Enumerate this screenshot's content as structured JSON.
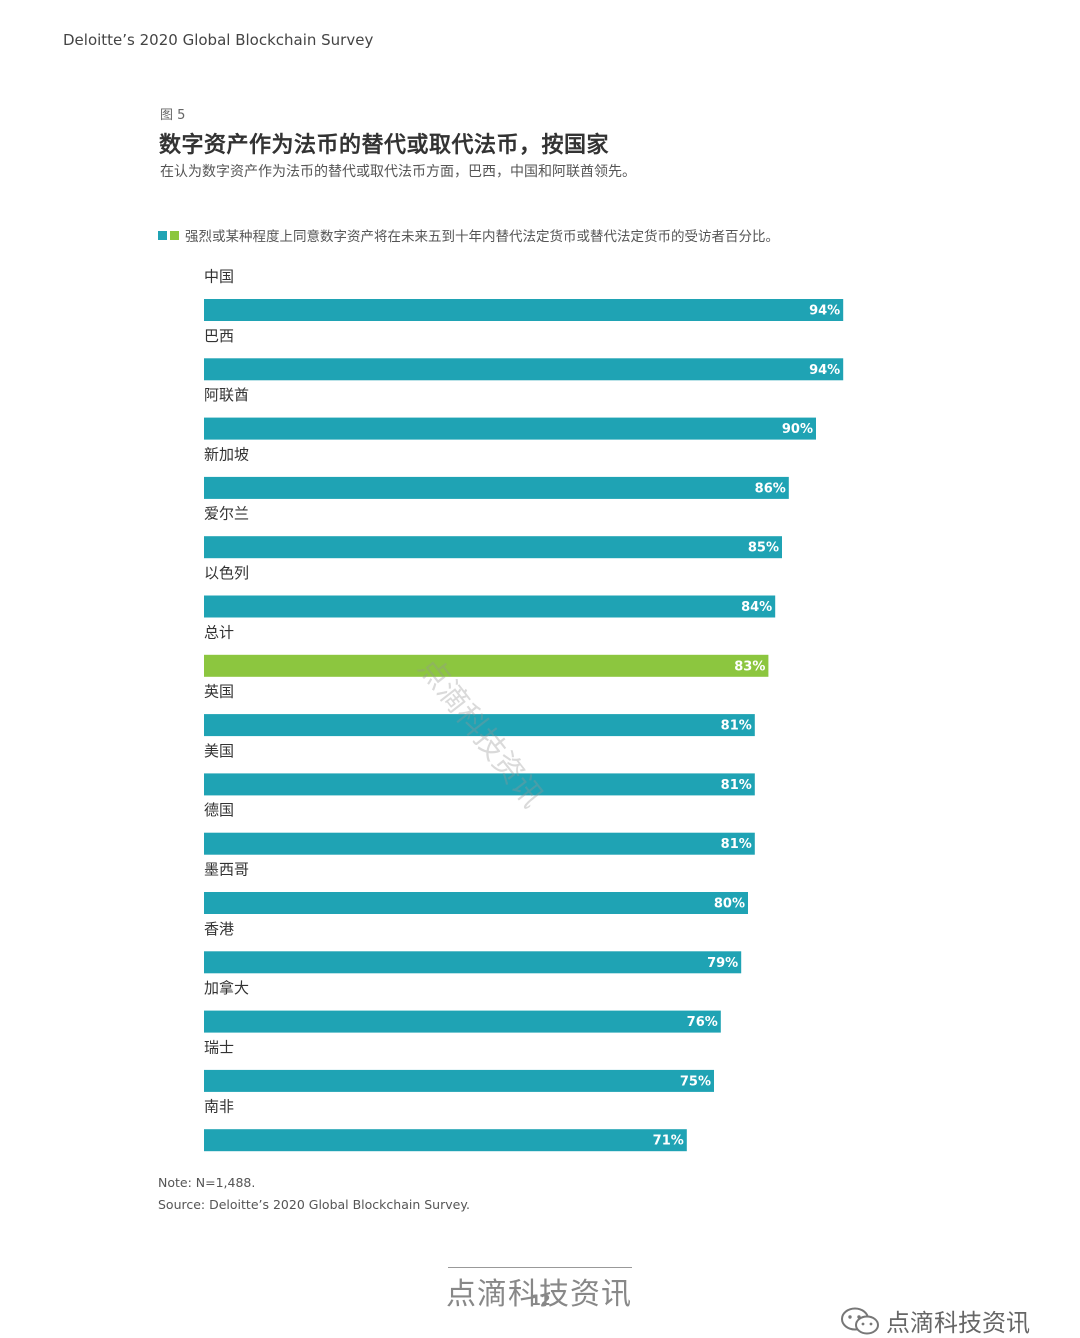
{
  "header": {
    "report_title": "Deloitte’s 2020 Global Blockchain Survey"
  },
  "figure": {
    "label": "图 5",
    "title": "数字资产作为法币的替代或取代法币，按国家",
    "subtitle": "在认为数字资产作为法币的替代或取代法币方面，巴西，中国和阿联酋领先。"
  },
  "legend": {
    "text": "强烈或某种程度上同意数字资产将在未来五到十年内替代法定货币或替代法定货币的受访者百分比。",
    "color_primary": "#1fa3b4",
    "color_total": "#8cc63f"
  },
  "chart_data": {
    "type": "bar",
    "orientation": "horizontal",
    "unit": "%",
    "xlim": [
      0,
      100
    ],
    "grid": false,
    "categories": [
      "中国",
      "巴西",
      "阿联酋",
      "新加坡",
      "爱尔兰",
      "以色列",
      "总计",
      "英国",
      "美国",
      "德国",
      "墨西哥",
      "香港",
      "加拿大",
      "瑞士",
      "南非"
    ],
    "values": [
      94,
      94,
      90,
      86,
      85,
      84,
      83,
      81,
      81,
      81,
      80,
      79,
      76,
      75,
      71
    ],
    "value_labels": [
      "94%",
      "94%",
      "90%",
      "86%",
      "85%",
      "84%",
      "83%",
      "81%",
      "81%",
      "81%",
      "80%",
      "79%",
      "76%",
      "75%",
      "71%"
    ],
    "highlight_category": "总计"
  },
  "notes": {
    "note": "Note: N=1,488.",
    "source": "Source: Deloitte’s 2020 Global Blockchain Survey."
  },
  "watermarks": {
    "center": "点滴科技资讯",
    "footer": "点滴科技资讯",
    "corner": "点滴科技资讯",
    "corner_icon": "wechat-icon"
  },
  "page": {
    "number": "12"
  }
}
